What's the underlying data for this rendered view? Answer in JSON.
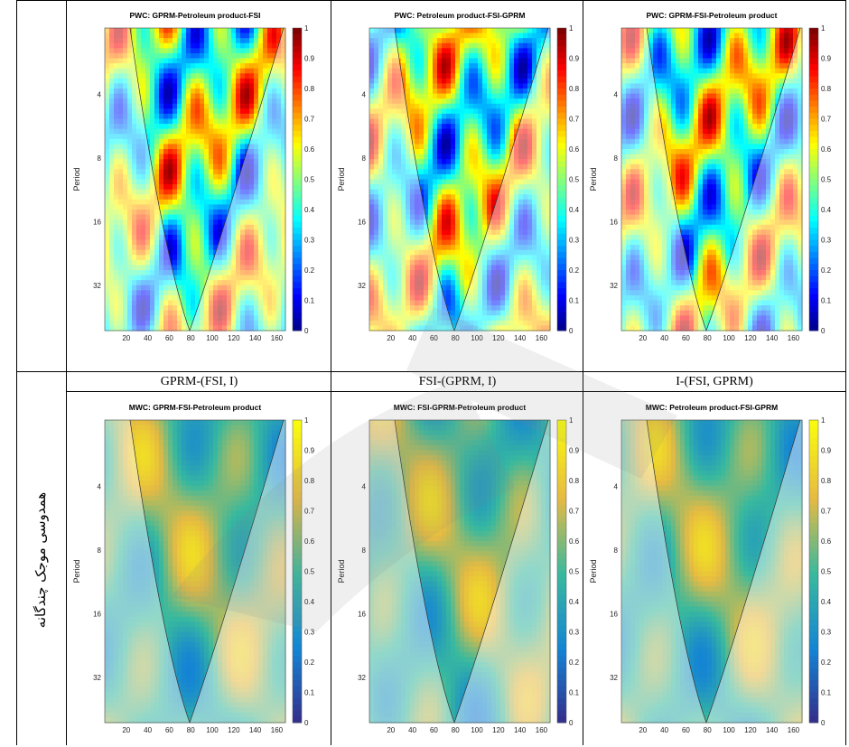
{
  "row_label": "همدوسی موجک چندگانه",
  "captions": [
    "GPRM-(FSI, I)",
    "FSI-(GPRM, I)",
    "I-(FSI, GPRM)"
  ],
  "axes": {
    "ylabel": "Period",
    "yticks": [
      "4",
      "8",
      "16",
      "32"
    ],
    "xticks": [
      "20",
      "40",
      "60",
      "80",
      "100",
      "120",
      "140",
      "160"
    ],
    "cbar_ticks": [
      "0",
      "0.1",
      "0.2",
      "0.3",
      "0.4",
      "0.5",
      "0.6",
      "0.7",
      "0.8",
      "0.9",
      "1"
    ]
  },
  "panels": [
    {
      "title": "PWC: GPRM-Petroleum product-FSI",
      "colormap": "jet"
    },
    {
      "title": "PWC: Petroleum product-FSI-GPRM",
      "colormap": "jet"
    },
    {
      "title": "PWC: GPRM-FSI-Petroleum product",
      "colormap": "jet"
    },
    {
      "title": "MWC: GPRM-FSI-Petroleum product",
      "colormap": "parula"
    },
    {
      "title": "MWC: FSI-GPRM-Petroleum product",
      "colormap": "parula"
    },
    {
      "title": "MWC: Petroleum product-FSI-GPRM",
      "colormap": "parula"
    }
  ],
  "colors": {
    "jet_low": "#00007f",
    "jet_high": "#7f0000",
    "parula_low": "#352a87",
    "parula_high": "#f9fb0e"
  }
}
